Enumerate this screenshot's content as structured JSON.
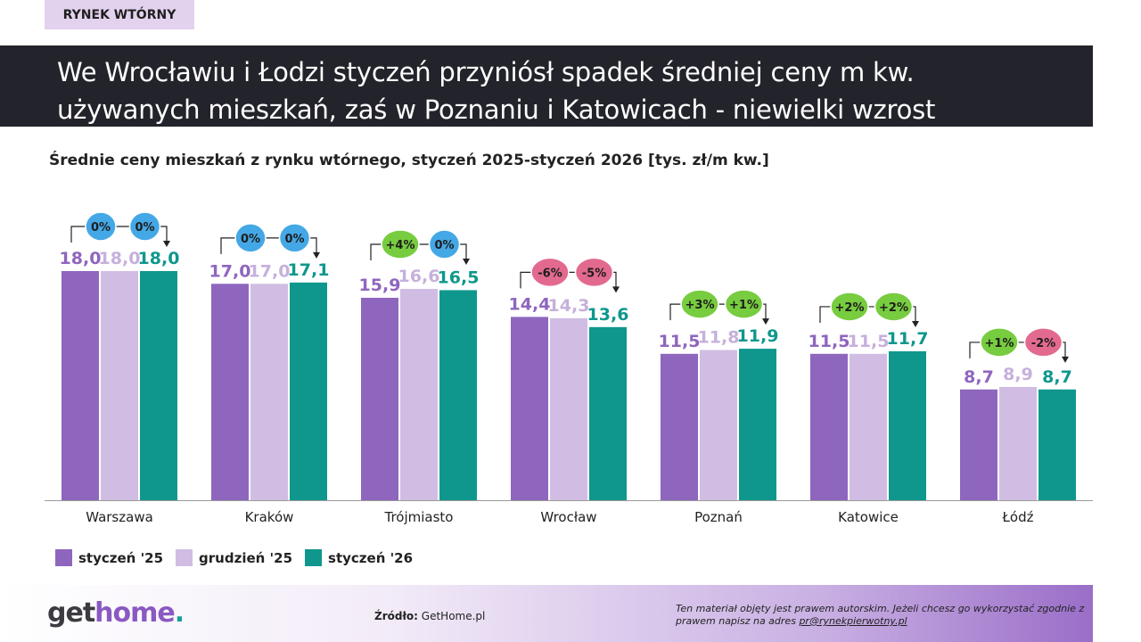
{
  "tag": "RYNEK WTÓRNY",
  "banner": {
    "line1": "We Wrocławiu i Łodzi styczeń przyniósł spadek średniej ceny m kw.",
    "line2": "używanych mieszkań, zaś w Poznaniu i Katowicach - niewielki wzrost"
  },
  "colors": {
    "s1": "#8e66be",
    "s2": "#d1bde3",
    "s3": "#0f978d",
    "s2text": "#c6b0dc",
    "badge_zero": "#45a8e6",
    "badge_up": "#77cc3f",
    "badge_down": "#e36a8f"
  },
  "chart_data": {
    "type": "bar",
    "title": "Średnie ceny mieszkań z rynku wtórnego, styczeń 2025-styczeń 2026 [tys. zł/m kw.]",
    "categories": [
      "Warszawa",
      "Kraków",
      "Trójmiasto",
      "Wrocław",
      "Poznań",
      "Katowice",
      "Łódź"
    ],
    "series": [
      {
        "name": "styczeń '25",
        "values": [
          18.0,
          17.0,
          15.9,
          14.4,
          11.5,
          11.5,
          8.7
        ],
        "labels": [
          "18,0",
          "17,0",
          "15,9",
          "14,4",
          "11,5",
          "11,5",
          "8,7"
        ]
      },
      {
        "name": "grudzień '25",
        "values": [
          18.0,
          17.0,
          16.6,
          14.3,
          11.8,
          11.5,
          8.9
        ],
        "labels": [
          "18,0",
          "17,0",
          "16,6",
          "14,3",
          "11,8",
          "11,5",
          "8,9"
        ]
      },
      {
        "name": "styczeń '26",
        "values": [
          18.0,
          17.1,
          16.5,
          13.6,
          11.9,
          11.7,
          8.7
        ],
        "labels": [
          "18,0",
          "17,1",
          "16,5",
          "13,6",
          "11,9",
          "11,7",
          "8,7"
        ]
      }
    ],
    "changes": [
      [
        {
          "label": "0%",
          "kind": "zero"
        },
        {
          "label": "0%",
          "kind": "zero"
        }
      ],
      [
        {
          "label": "0%",
          "kind": "zero"
        },
        {
          "label": "0%",
          "kind": "zero"
        }
      ],
      [
        {
          "label": "+4%",
          "kind": "up"
        },
        {
          "label": "0%",
          "kind": "zero"
        }
      ],
      [
        {
          "label": "-6%",
          "kind": "down"
        },
        {
          "label": "-5%",
          "kind": "down"
        }
      ],
      [
        {
          "label": "+3%",
          "kind": "up"
        },
        {
          "label": "+1%",
          "kind": "up"
        }
      ],
      [
        {
          "label": "+2%",
          "kind": "up"
        },
        {
          "label": "+2%",
          "kind": "up"
        }
      ],
      [
        {
          "label": "+1%",
          "kind": "up"
        },
        {
          "label": "-2%",
          "kind": "down"
        }
      ]
    ],
    "ylim": [
      0,
      18.5
    ],
    "grid": false,
    "legend_position": "bottom-left"
  },
  "legend": [
    "styczeń '25",
    "grudzień '25",
    "styczeń '26"
  ],
  "footer": {
    "logo_a": "get",
    "logo_b": "home",
    "logo_dot": ".",
    "source_label": "Źródło:",
    "source_value": "GetHome.pl",
    "copyright": "Ten materiał objęty jest prawem autorskim. Jeżeli chcesz go wykorzystać zgodnie z prawem napisz na adres ",
    "copyright_link": "pr@rynekpierwotny.pl"
  }
}
